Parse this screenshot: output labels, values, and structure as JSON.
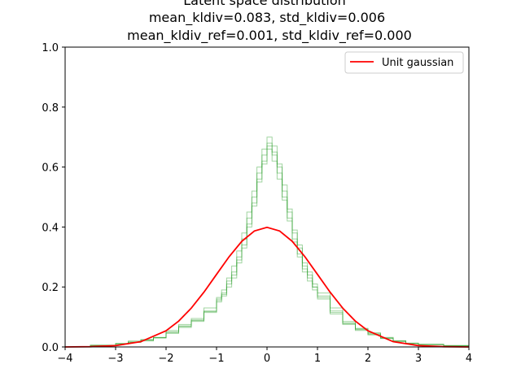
{
  "chart_data": {
    "type": "line",
    "title_lines": [
      "Latent space distribution",
      "mean_kldiv=0.083, std_kldiv=0.006",
      "mean_kldiv_ref=0.001, std_kldiv_ref=0.000"
    ],
    "xlabel": "",
    "ylabel": "",
    "xlim": [
      -4,
      4
    ],
    "ylim": [
      0,
      1.0
    ],
    "x_ticks": [
      -4,
      -3,
      -2,
      -1,
      0,
      1,
      2,
      3,
      4
    ],
    "x_tick_labels": [
      "−4",
      "−3",
      "−2",
      "−1",
      "0",
      "1",
      "2",
      "3",
      "4"
    ],
    "y_ticks": [
      0.0,
      0.2,
      0.4,
      0.6,
      0.8,
      1.0
    ],
    "y_tick_labels": [
      "0.0",
      "0.2",
      "0.4",
      "0.6",
      "0.8",
      "1.0"
    ],
    "grid": false,
    "legend": {
      "placement": "top-right",
      "entries": [
        {
          "label": "Unit gaussian",
          "color": "#ff0000"
        }
      ]
    },
    "series": [
      {
        "name": "Unit gaussian",
        "style": "line",
        "color": "#ff0000",
        "x": [
          -4,
          -3.5,
          -3,
          -2.5,
          -2,
          -1.75,
          -1.5,
          -1.25,
          -1,
          -0.75,
          -0.5,
          -0.25,
          0,
          0.25,
          0.5,
          0.75,
          1,
          1.25,
          1.5,
          1.75,
          2,
          2.5,
          3,
          3.5,
          4
        ],
        "y": [
          0.0001,
          0.0009,
          0.0044,
          0.0175,
          0.054,
          0.0863,
          0.1295,
          0.1826,
          0.242,
          0.3011,
          0.3521,
          0.3867,
          0.3989,
          0.3867,
          0.3521,
          0.3011,
          0.242,
          0.1826,
          0.1295,
          0.0863,
          0.054,
          0.0175,
          0.0044,
          0.0009,
          0.0001
        ]
      },
      {
        "name": "",
        "style": "step",
        "color": "#2ca02c",
        "x": [
          -4,
          -3.5,
          -3,
          -2.75,
          -2.5,
          -2.25,
          -2,
          -1.75,
          -1.5,
          -1.25,
          -1,
          -0.9,
          -0.8,
          -0.7,
          -0.6,
          -0.5,
          -0.4,
          -0.3,
          -0.2,
          -0.1,
          0,
          0.1,
          0.2,
          0.3,
          0.4,
          0.5,
          0.6,
          0.7,
          0.8,
          0.9,
          1,
          1.25,
          1.5,
          1.75,
          2,
          2.25,
          2.5,
          2.75,
          3,
          3.5,
          4
        ],
        "y": [
          0.0,
          0.005,
          0.01,
          0.015,
          0.02,
          0.03,
          0.05,
          0.07,
          0.09,
          0.12,
          0.16,
          0.18,
          0.22,
          0.25,
          0.3,
          0.36,
          0.43,
          0.5,
          0.58,
          0.64,
          0.68,
          0.65,
          0.6,
          0.52,
          0.45,
          0.38,
          0.33,
          0.27,
          0.24,
          0.2,
          0.17,
          0.12,
          0.08,
          0.06,
          0.045,
          0.03,
          0.02,
          0.012,
          0.008,
          0.004,
          0.0
        ]
      },
      {
        "name": "",
        "style": "step",
        "color": "#2ca02c",
        "x": [
          -4,
          -3.5,
          -3,
          -2.75,
          -2.5,
          -2.25,
          -2,
          -1.75,
          -1.5,
          -1.25,
          -1,
          -0.9,
          -0.8,
          -0.7,
          -0.6,
          -0.5,
          -0.4,
          -0.3,
          -0.2,
          -0.1,
          0,
          0.1,
          0.2,
          0.3,
          0.4,
          0.5,
          0.6,
          0.7,
          0.8,
          0.9,
          1,
          1.25,
          1.5,
          1.75,
          2,
          2.25,
          2.5,
          2.75,
          3,
          3.5,
          4
        ],
        "y": [
          0.0,
          0.006,
          0.012,
          0.017,
          0.025,
          0.03,
          0.045,
          0.065,
          0.085,
          0.115,
          0.15,
          0.17,
          0.2,
          0.23,
          0.28,
          0.33,
          0.4,
          0.47,
          0.55,
          0.61,
          0.66,
          0.62,
          0.56,
          0.49,
          0.42,
          0.35,
          0.3,
          0.25,
          0.22,
          0.19,
          0.16,
          0.11,
          0.075,
          0.055,
          0.04,
          0.028,
          0.018,
          0.012,
          0.009,
          0.003,
          0.0
        ]
      },
      {
        "name": "",
        "style": "step",
        "color": "#2ca02c",
        "x": [
          -4,
          -3.5,
          -3,
          -2.75,
          -2.5,
          -2.25,
          -2,
          -1.75,
          -1.5,
          -1.25,
          -1,
          -0.9,
          -0.8,
          -0.7,
          -0.6,
          -0.5,
          -0.4,
          -0.3,
          -0.2,
          -0.1,
          0,
          0.1,
          0.2,
          0.3,
          0.4,
          0.5,
          0.6,
          0.7,
          0.8,
          0.9,
          1,
          1.25,
          1.5,
          1.75,
          2,
          2.25,
          2.5,
          2.75,
          3,
          3.5,
          4
        ],
        "y": [
          0.0,
          0.004,
          0.01,
          0.02,
          0.022,
          0.032,
          0.055,
          0.075,
          0.095,
          0.13,
          0.165,
          0.19,
          0.23,
          0.27,
          0.32,
          0.38,
          0.45,
          0.52,
          0.6,
          0.66,
          0.7,
          0.67,
          0.61,
          0.54,
          0.46,
          0.39,
          0.34,
          0.28,
          0.25,
          0.21,
          0.18,
          0.13,
          0.085,
          0.062,
          0.047,
          0.032,
          0.021,
          0.013,
          0.007,
          0.005,
          0.0
        ]
      },
      {
        "name": "",
        "style": "step",
        "color": "#2ca02c",
        "x": [
          -4,
          -3.5,
          -3,
          -2.75,
          -2.5,
          -2.25,
          -2,
          -1.75,
          -1.5,
          -1.25,
          -1,
          -0.9,
          -0.8,
          -0.7,
          -0.6,
          -0.5,
          -0.4,
          -0.3,
          -0.2,
          -0.1,
          0,
          0.1,
          0.2,
          0.3,
          0.4,
          0.5,
          0.6,
          0.7,
          0.8,
          0.9,
          1,
          1.25,
          1.5,
          1.75,
          2,
          2.25,
          2.5,
          2.75,
          3,
          3.5,
          4
        ],
        "y": [
          0.0,
          0.005,
          0.011,
          0.016,
          0.023,
          0.031,
          0.048,
          0.068,
          0.088,
          0.118,
          0.155,
          0.175,
          0.21,
          0.24,
          0.29,
          0.34,
          0.41,
          0.48,
          0.56,
          0.62,
          0.67,
          0.64,
          0.58,
          0.5,
          0.43,
          0.36,
          0.31,
          0.26,
          0.23,
          0.2,
          0.165,
          0.115,
          0.078,
          0.058,
          0.042,
          0.029,
          0.019,
          0.011,
          0.008,
          0.004,
          0.0
        ]
      }
    ]
  }
}
